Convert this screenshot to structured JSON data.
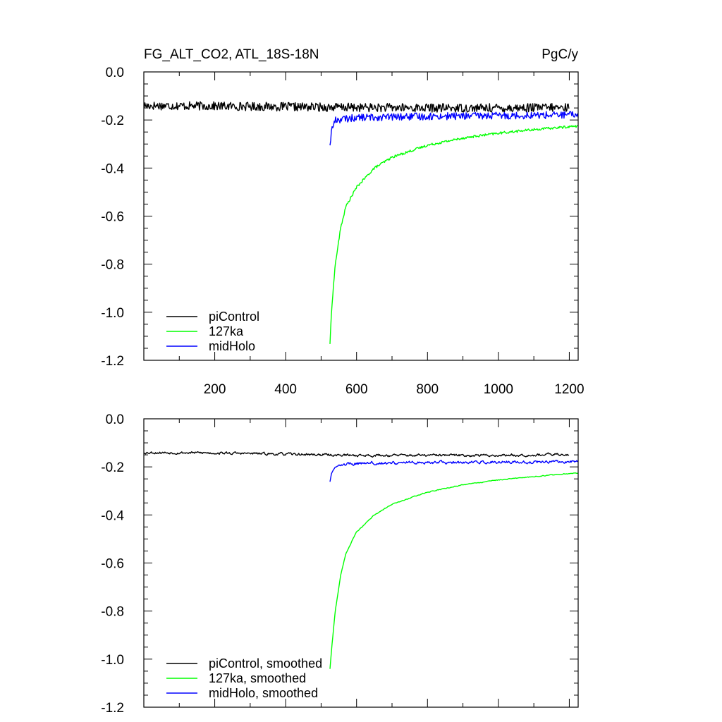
{
  "header": {
    "title": "FG_ALT_CO2, ATL_18S-18N",
    "units": "PgC/y"
  },
  "chart_data": [
    {
      "type": "line",
      "panel": "top",
      "xlim": [
        0,
        1225
      ],
      "ylim": [
        -1.2,
        0.0
      ],
      "x_ticks": [
        200,
        400,
        600,
        800,
        1000,
        1200
      ],
      "x_tick_labels": [
        "200",
        "400",
        "600",
        "800",
        "1000",
        "1200"
      ],
      "y_ticks": [
        0.0,
        -0.2,
        -0.4,
        -0.6,
        -0.8,
        -1.0,
        -1.2
      ],
      "y_tick_labels": [
        "0.0",
        "-0.2",
        "-0.4",
        "-0.6",
        "-0.8",
        "-1.0",
        "-1.2"
      ],
      "grid": false,
      "legend_position": "bottom-left",
      "series": [
        {
          "name": "piControl",
          "color": "#000000",
          "x_start": 1,
          "x_end": 1200,
          "level_points": [
            [
              1,
              -0.14
            ],
            [
              200,
              -0.142
            ],
            [
              400,
              -0.145
            ],
            [
              600,
              -0.148
            ],
            [
              800,
              -0.15
            ],
            [
              1000,
              -0.15
            ],
            [
              1200,
              -0.148
            ]
          ],
          "noise_amplitude": 0.018
        },
        {
          "name": "127ka",
          "color": "#00ff00",
          "x_start": 525,
          "x_end": 1225,
          "level_points": [
            [
              525,
              -1.13
            ],
            [
              530,
              -0.98
            ],
            [
              540,
              -0.8
            ],
            [
              555,
              -0.65
            ],
            [
              570,
              -0.56
            ],
            [
              600,
              -0.48
            ],
            [
              650,
              -0.4
            ],
            [
              700,
              -0.355
            ],
            [
              800,
              -0.305
            ],
            [
              900,
              -0.275
            ],
            [
              1000,
              -0.255
            ],
            [
              1100,
              -0.24
            ],
            [
              1225,
              -0.225
            ]
          ],
          "noise_amplitude": 0.005
        },
        {
          "name": "midHolo",
          "color": "#0000ff",
          "x_start": 525,
          "x_end": 1225,
          "level_points": [
            [
              525,
              -0.3
            ],
            [
              530,
              -0.24
            ],
            [
              540,
              -0.2
            ],
            [
              600,
              -0.19
            ],
            [
              800,
              -0.185
            ],
            [
              1000,
              -0.182
            ],
            [
              1225,
              -0.178
            ]
          ],
          "noise_amplitude": 0.015
        }
      ]
    },
    {
      "type": "line",
      "panel": "bottom",
      "xlim": [
        0,
        1225
      ],
      "ylim": [
        -1.2,
        0.0
      ],
      "x_ticks": [
        200,
        400,
        600,
        800,
        1000,
        1200
      ],
      "y_ticks": [
        0.0,
        -0.2,
        -0.4,
        -0.6,
        -0.8,
        -1.0,
        -1.2
      ],
      "y_tick_labels": [
        "0.0",
        "-0.2",
        "-0.4",
        "-0.6",
        "-0.8",
        "-1.0",
        "-1.2"
      ],
      "grid": false,
      "legend_position": "bottom-left",
      "series": [
        {
          "name": "piControl, smoothed",
          "color": "#000000",
          "x_start": 1,
          "x_end": 1200,
          "level_points": [
            [
              1,
              -0.14
            ],
            [
              200,
              -0.142
            ],
            [
              400,
              -0.147
            ],
            [
              600,
              -0.152
            ],
            [
              800,
              -0.152
            ],
            [
              1000,
              -0.152
            ],
            [
              1200,
              -0.148
            ]
          ],
          "noise_amplitude": 0.006
        },
        {
          "name": "127ka, smoothed",
          "color": "#00ff00",
          "x_start": 525,
          "x_end": 1225,
          "level_points": [
            [
              525,
              -1.04
            ],
            [
              530,
              -0.95
            ],
            [
              540,
              -0.8
            ],
            [
              555,
              -0.65
            ],
            [
              570,
              -0.56
            ],
            [
              600,
              -0.47
            ],
            [
              650,
              -0.4
            ],
            [
              700,
              -0.355
            ],
            [
              800,
              -0.305
            ],
            [
              900,
              -0.275
            ],
            [
              1000,
              -0.255
            ],
            [
              1100,
              -0.24
            ],
            [
              1225,
              -0.225
            ]
          ],
          "noise_amplitude": 0.002
        },
        {
          "name": "midHolo, smoothed",
          "color": "#0000ff",
          "x_start": 525,
          "x_end": 1225,
          "level_points": [
            [
              525,
              -0.26
            ],
            [
              530,
              -0.22
            ],
            [
              540,
              -0.195
            ],
            [
              600,
              -0.185
            ],
            [
              800,
              -0.182
            ],
            [
              1000,
              -0.18
            ],
            [
              1225,
              -0.178
            ]
          ],
          "noise_amplitude": 0.007
        }
      ]
    }
  ]
}
